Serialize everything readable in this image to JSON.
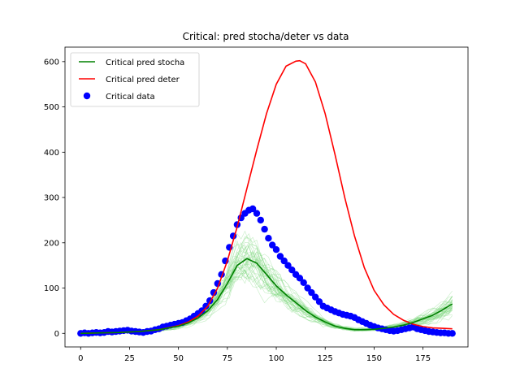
{
  "chart_data": {
    "type": "line",
    "title": "Critical: pred stocha/deter vs data",
    "xlabel": "",
    "ylabel": "",
    "xlim": [
      -8,
      198
    ],
    "ylim": [
      -30,
      632
    ],
    "x_ticks": [
      0,
      25,
      50,
      75,
      100,
      125,
      150,
      175
    ],
    "y_ticks": [
      0,
      100,
      200,
      300,
      400,
      500,
      600
    ],
    "grid": false,
    "legend_position": "upper left",
    "series": [
      {
        "name": "Critical pred stocha",
        "kind": "line",
        "color": "#008000",
        "x": [
          0,
          10,
          20,
          30,
          40,
          50,
          55,
          60,
          65,
          70,
          75,
          80,
          85,
          90,
          95,
          100,
          105,
          110,
          115,
          120,
          125,
          130,
          135,
          140,
          145,
          150,
          155,
          160,
          165,
          170,
          175,
          180,
          185,
          190
        ],
        "y": [
          0,
          1,
          2,
          4,
          8,
          16,
          23,
          34,
          50,
          75,
          110,
          150,
          165,
          155,
          130,
          105,
          85,
          68,
          50,
          36,
          25,
          16,
          11,
          8,
          8,
          9,
          11,
          14,
          18,
          24,
          32,
          40,
          52,
          65
        ]
      },
      {
        "name": "Critical pred deter",
        "kind": "line",
        "color": "#ff0000",
        "x": [
          0,
          10,
          20,
          30,
          40,
          50,
          55,
          60,
          65,
          70,
          75,
          80,
          85,
          90,
          95,
          100,
          105,
          110,
          112,
          115,
          120,
          125,
          130,
          135,
          140,
          145,
          150,
          155,
          160,
          165,
          170,
          175,
          180,
          185,
          190
        ],
        "y": [
          0,
          1,
          2,
          4,
          8,
          17,
          25,
          38,
          60,
          100,
          160,
          235,
          320,
          405,
          485,
          550,
          590,
          601,
          602,
          595,
          555,
          485,
          395,
          300,
          215,
          145,
          95,
          63,
          42,
          29,
          20,
          15,
          12,
          11,
          10
        ]
      },
      {
        "name": "Critical data",
        "kind": "scatter",
        "color": "#0000ff",
        "x": [
          0,
          2,
          4,
          6,
          8,
          10,
          12,
          14,
          16,
          18,
          20,
          22,
          24,
          26,
          28,
          30,
          32,
          34,
          36,
          38,
          40,
          42,
          44,
          46,
          48,
          50,
          52,
          54,
          56,
          58,
          60,
          62,
          64,
          66,
          68,
          70,
          72,
          74,
          76,
          78,
          80,
          82,
          84,
          86,
          88,
          90,
          92,
          94,
          96,
          98,
          100,
          102,
          104,
          106,
          108,
          110,
          112,
          114,
          116,
          118,
          120,
          122,
          124,
          126,
          128,
          130,
          132,
          134,
          136,
          138,
          140,
          142,
          144,
          146,
          148,
          150,
          152,
          154,
          156,
          158,
          160,
          162,
          164,
          166,
          168,
          170,
          172,
          174,
          176,
          178,
          180,
          182,
          184,
          186,
          188,
          190
        ],
        "y": [
          0,
          1,
          0,
          1,
          2,
          1,
          2,
          4,
          3,
          4,
          5,
          6,
          7,
          5,
          4,
          3,
          2,
          4,
          5,
          8,
          10,
          14,
          16,
          18,
          20,
          22,
          24,
          28,
          32,
          38,
          44,
          50,
          60,
          72,
          90,
          110,
          130,
          160,
          190,
          215,
          240,
          255,
          265,
          272,
          275,
          265,
          250,
          230,
          210,
          195,
          185,
          170,
          160,
          150,
          140,
          130,
          122,
          112,
          100,
          90,
          80,
          70,
          60,
          56,
          52,
          48,
          45,
          42,
          40,
          38,
          35,
          30,
          26,
          22,
          18,
          15,
          12,
          10,
          8,
          6,
          5,
          6,
          8,
          10,
          12,
          14,
          10,
          8,
          6,
          4,
          3,
          2,
          1,
          1,
          0,
          0
        ]
      }
    ]
  }
}
